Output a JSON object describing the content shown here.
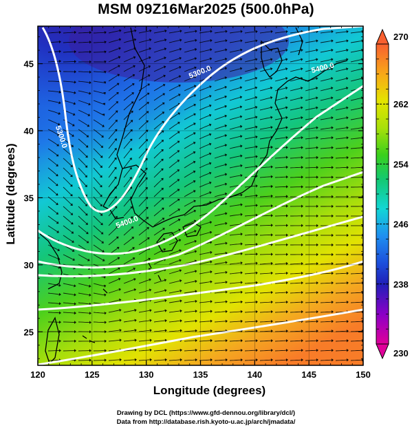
{
  "title": "MSM 09Z16Mar2025 (500.0hPa)",
  "xlabel": "Longitude (degrees)",
  "ylabel": "Latitude  (degrees)",
  "credit_line1": "Drawing by DCL (https://www.gfd-dennou.org/library/dcl/)",
  "credit_line2": "Data from http://database.rish.kyoto-u.ac.jp/arch/jmadata/",
  "map": {
    "lon_range": [
      120,
      150
    ],
    "lat_range": [
      22.5,
      47.8
    ],
    "lon_ticks": [
      "120",
      "125",
      "130",
      "135",
      "140",
      "145",
      "150"
    ],
    "lat_ticks": [
      "25",
      "30",
      "35",
      "40",
      "45"
    ]
  },
  "colorbar": {
    "range": [
      230,
      270
    ],
    "tick_labels": [
      "270",
      "262",
      "254",
      "246",
      "238",
      "230"
    ],
    "colors": [
      "#e0009a",
      "#8a00c6",
      "#2020b8",
      "#1c4fdc",
      "#1f8ff0",
      "#12d6d6",
      "#14c870",
      "#3ad01c",
      "#a8e00a",
      "#e4e400",
      "#f8a818",
      "#f86030"
    ]
  },
  "contour_labels": [
    "5300.0",
    "5300.0",
    "5400.0",
    "5400.0"
  ],
  "icons": {
    "cb_top": "triangle-up-icon",
    "cb_bottom": "triangle-down-icon"
  }
}
